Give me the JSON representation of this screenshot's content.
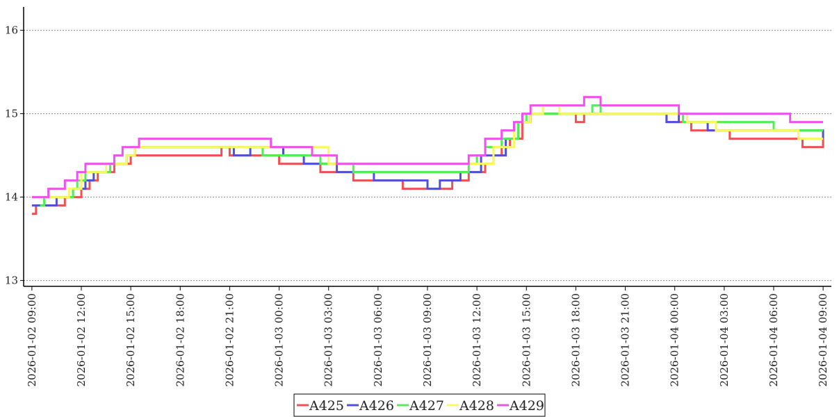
{
  "chart_data": {
    "type": "line",
    "title": "",
    "xlabel": "",
    "ylabel": "",
    "ylim": [
      12.93,
      16.28
    ],
    "xlim": [
      "2026-01-02 08:30",
      "2026-01-04 09:30"
    ],
    "grid": {
      "horizontal": true,
      "vertical": false,
      "style": "dotted"
    },
    "legend_position": "bottom-center",
    "y_ticks": [
      {
        "value": 13,
        "label": "13"
      },
      {
        "value": 14,
        "label": "14"
      },
      {
        "value": 15,
        "label": "15"
      },
      {
        "value": 16,
        "label": "16"
      }
    ],
    "x_ticks": [
      "2026-01-02  09:00",
      "2026-01-02  12:00",
      "2026-01-02  15:00",
      "2026-01-02  18:00",
      "2026-01-02  21:00",
      "2026-01-03  00:00",
      "2026-01-03  03:00",
      "2026-01-03  06:00",
      "2026-01-03  09:00",
      "2026-01-03  12:00",
      "2026-01-03  15:00",
      "2026-01-03  18:00",
      "2026-01-03  21:00",
      "2026-01-04  00:00",
      "2026-01-04  03:00",
      "2026-01-04  06:00",
      "2026-01-04  09:00"
    ],
    "series": [
      {
        "name": "A425",
        "color": "#f05050",
        "points": [
          [
            "2026-01-02 09:00",
            13.8
          ],
          [
            "2026-01-02 09:15",
            13.9
          ],
          [
            "2026-01-02 11:00",
            14.0
          ],
          [
            "2026-01-02 12:00",
            14.1
          ],
          [
            "2026-01-02 12:30",
            14.2
          ],
          [
            "2026-01-02 13:00",
            14.3
          ],
          [
            "2026-01-02 14:00",
            14.4
          ],
          [
            "2026-01-02 15:00",
            14.5
          ],
          [
            "2026-01-02 20:30",
            14.6
          ],
          [
            "2026-01-02 21:00",
            14.5
          ],
          [
            "2026-01-03 00:00",
            14.4
          ],
          [
            "2026-01-03 02:30",
            14.3
          ],
          [
            "2026-01-03 04:30",
            14.2
          ],
          [
            "2026-01-03 07:30",
            14.1
          ],
          [
            "2026-01-03 10:30",
            14.2
          ],
          [
            "2026-01-03 11:30",
            14.3
          ],
          [
            "2026-01-03 12:30",
            14.4
          ],
          [
            "2026-01-03 13:00",
            14.5
          ],
          [
            "2026-01-03 13:30",
            14.6
          ],
          [
            "2026-01-03 14:00",
            14.7
          ],
          [
            "2026-01-03 14:45",
            14.9
          ],
          [
            "2026-01-03 15:15",
            15.0
          ],
          [
            "2026-01-03 18:00",
            14.9
          ],
          [
            "2026-01-03 18:30",
            15.0
          ],
          [
            "2026-01-03 23:30",
            14.9
          ],
          [
            "2026-01-04 01:00",
            14.8
          ],
          [
            "2026-01-04 03:20",
            14.7
          ],
          [
            "2026-01-04 07:45",
            14.6
          ],
          [
            "2026-01-04 09:00",
            14.7
          ]
        ]
      },
      {
        "name": "A426",
        "color": "#5050e0",
        "points": [
          [
            "2026-01-02 09:00",
            13.9
          ],
          [
            "2026-01-02 10:30",
            14.0
          ],
          [
            "2026-01-02 11:30",
            14.1
          ],
          [
            "2026-01-02 12:15",
            14.2
          ],
          [
            "2026-01-02 12:45",
            14.3
          ],
          [
            "2026-01-02 13:45",
            14.4
          ],
          [
            "2026-01-02 14:45",
            14.5
          ],
          [
            "2026-01-02 15:15",
            14.6
          ],
          [
            "2026-01-02 21:15",
            14.5
          ],
          [
            "2026-01-02 22:15",
            14.6
          ],
          [
            "2026-01-03 00:15",
            14.5
          ],
          [
            "2026-01-03 01:30",
            14.4
          ],
          [
            "2026-01-03 03:30",
            14.3
          ],
          [
            "2026-01-03 05:45",
            14.2
          ],
          [
            "2026-01-03 09:00",
            14.1
          ],
          [
            "2026-01-03 09:45",
            14.2
          ],
          [
            "2026-01-03 11:00",
            14.3
          ],
          [
            "2026-01-03 12:15",
            14.5
          ],
          [
            "2026-01-03 13:45",
            14.7
          ],
          [
            "2026-01-03 14:30",
            14.9
          ],
          [
            "2026-01-03 15:15",
            15.0
          ],
          [
            "2026-01-03 23:30",
            14.9
          ],
          [
            "2026-01-04 00:15",
            15.0
          ],
          [
            "2026-01-04 00:45",
            14.9
          ],
          [
            "2026-01-04 02:00",
            14.8
          ],
          [
            "2026-01-04 09:00",
            14.7
          ]
        ]
      },
      {
        "name": "A427",
        "color": "#50f050",
        "points": [
          [
            "2026-01-02 09:30",
            13.9
          ],
          [
            "2026-01-02 09:45",
            14.0
          ],
          [
            "2026-01-02 11:30",
            14.1
          ],
          [
            "2026-01-02 11:45",
            14.2
          ],
          [
            "2026-01-02 12:15",
            14.3
          ],
          [
            "2026-01-02 13:45",
            14.4
          ],
          [
            "2026-01-02 14:45",
            14.5
          ],
          [
            "2026-01-02 15:15",
            14.6
          ],
          [
            "2026-01-02 23:00",
            14.5
          ],
          [
            "2026-01-03 02:30",
            14.4
          ],
          [
            "2026-01-03 04:30",
            14.3
          ],
          [
            "2026-01-03 11:30",
            14.4
          ],
          [
            "2026-01-03 12:00",
            14.5
          ],
          [
            "2026-01-03 12:30",
            14.6
          ],
          [
            "2026-01-03 13:30",
            14.7
          ],
          [
            "2026-01-03 14:30",
            14.9
          ],
          [
            "2026-01-03 15:00",
            15.0
          ],
          [
            "2026-01-03 19:00",
            15.1
          ],
          [
            "2026-01-03 19:30",
            15.0
          ],
          [
            "2026-01-04 00:30",
            14.9
          ],
          [
            "2026-01-04 04:00",
            14.9
          ],
          [
            "2026-01-04 06:00",
            14.8
          ],
          [
            "2026-01-04 09:00",
            14.8
          ]
        ]
      },
      {
        "name": "A428",
        "color": "#f8f860",
        "points": [
          [
            "2026-01-02 09:30",
            14.0
          ],
          [
            "2026-01-02 11:15",
            14.1
          ],
          [
            "2026-01-02 12:00",
            14.3
          ],
          [
            "2026-01-02 13:30",
            14.4
          ],
          [
            "2026-01-02 14:45",
            14.5
          ],
          [
            "2026-01-02 15:15",
            14.6
          ],
          [
            "2026-01-03 00:00",
            14.6
          ],
          [
            "2026-01-03 03:00",
            14.4
          ],
          [
            "2026-01-03 11:00",
            14.4
          ],
          [
            "2026-01-03 13:00",
            14.6
          ],
          [
            "2026-01-03 14:15",
            14.9
          ],
          [
            "2026-01-03 15:15",
            15.0
          ],
          [
            "2026-01-03 16:00",
            15.1
          ],
          [
            "2026-01-03 17:00",
            15.0
          ],
          [
            "2026-01-04 00:45",
            14.9
          ],
          [
            "2026-01-04 02:30",
            14.8
          ],
          [
            "2026-01-04 07:30",
            14.7
          ],
          [
            "2026-01-04 09:00",
            14.7
          ]
        ]
      },
      {
        "name": "A429",
        "color": "#f050f0",
        "points": [
          [
            "2026-01-02 09:00",
            14.0
          ],
          [
            "2026-01-02 10:00",
            14.1
          ],
          [
            "2026-01-02 11:00",
            14.2
          ],
          [
            "2026-01-02 11:45",
            14.3
          ],
          [
            "2026-01-02 12:15",
            14.4
          ],
          [
            "2026-01-02 14:00",
            14.5
          ],
          [
            "2026-01-02 14:30",
            14.6
          ],
          [
            "2026-01-02 15:30",
            14.7
          ],
          [
            "2026-01-02 23:30",
            14.6
          ],
          [
            "2026-01-03 02:00",
            14.5
          ],
          [
            "2026-01-03 03:30",
            14.4
          ],
          [
            "2026-01-03 11:30",
            14.5
          ],
          [
            "2026-01-03 12:30",
            14.7
          ],
          [
            "2026-01-03 13:30",
            14.8
          ],
          [
            "2026-01-03 14:15",
            14.9
          ],
          [
            "2026-01-03 14:45",
            15.0
          ],
          [
            "2026-01-03 15:15",
            15.1
          ],
          [
            "2026-01-03 18:30",
            15.2
          ],
          [
            "2026-01-03 19:30",
            15.1
          ],
          [
            "2026-01-03 23:45",
            15.1
          ],
          [
            "2026-01-04 00:15",
            15.0
          ],
          [
            "2026-01-04 06:30",
            15.0
          ],
          [
            "2026-01-04 07:00",
            14.9
          ],
          [
            "2026-01-04 09:00",
            14.9
          ]
        ]
      }
    ]
  }
}
